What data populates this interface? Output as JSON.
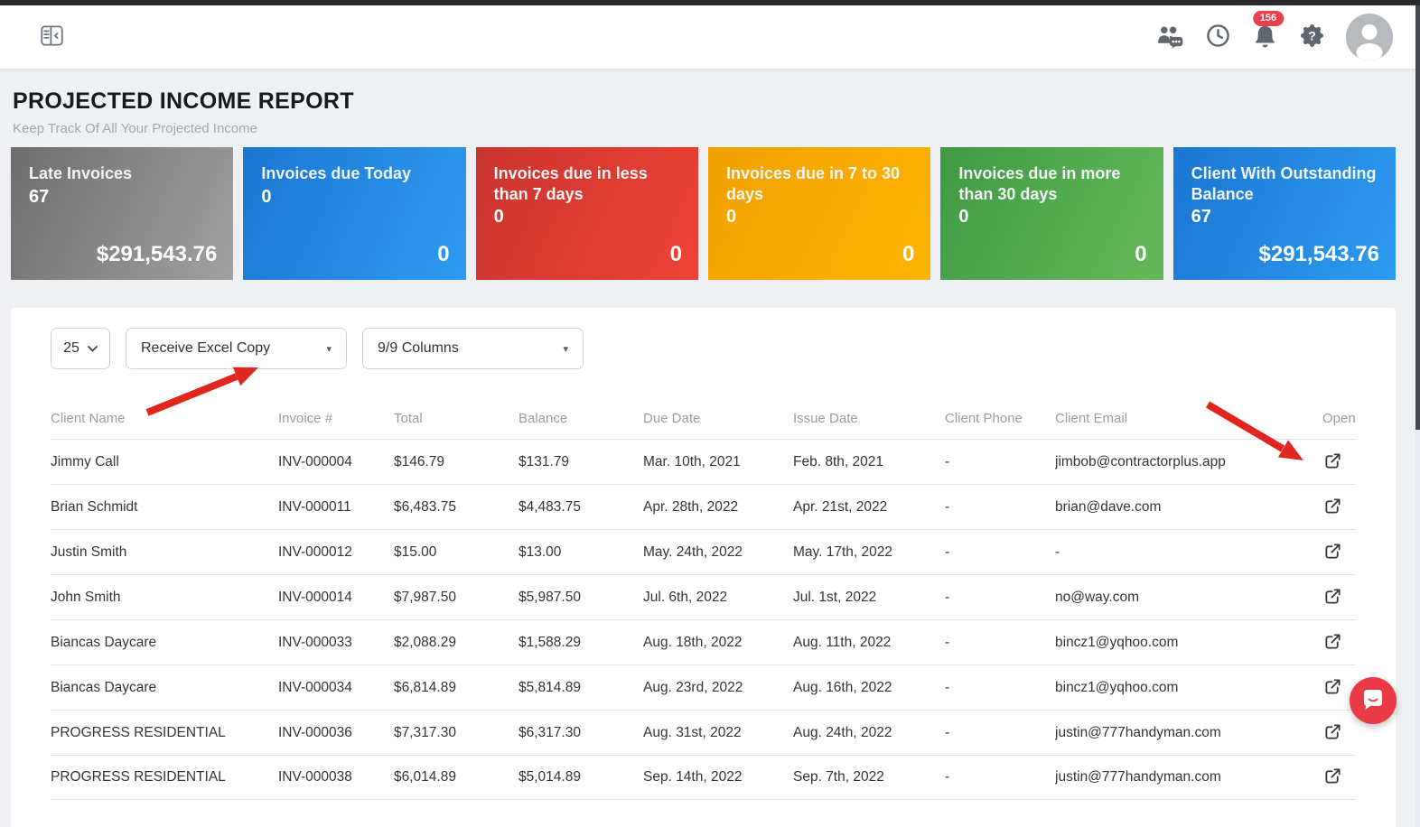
{
  "navbar": {
    "notification_count": "156"
  },
  "page": {
    "title": "PROJECTED INCOME REPORT",
    "subtitle": "Keep Track Of All Your Projected Income"
  },
  "cards": [
    {
      "label": "Late Invoices",
      "count": "67",
      "amount": "$291,543.76",
      "from": "#6d6d6d",
      "to": "#a1a1a1"
    },
    {
      "label": "Invoices due Today",
      "count": "0",
      "amount": "0",
      "from": "#1a76d2",
      "to": "#2d9bf0"
    },
    {
      "label": "Invoices due in less than 7 days",
      "count": "0",
      "amount": "0",
      "from": "#c9352e",
      "to": "#f04237"
    },
    {
      "label": "Invoices due in 7 to 30 days",
      "count": "0",
      "amount": "0",
      "from": "#efa000",
      "to": "#ffb503"
    },
    {
      "label": "Invoices due in more than 30 days",
      "count": "0",
      "amount": "0",
      "from": "#3f9a43",
      "to": "#66b95a"
    },
    {
      "label": "Client With Outstanding Balance",
      "count": "67",
      "amount": "$291,543.76",
      "from": "#1a76d2",
      "to": "#2d9bf0"
    }
  ],
  "controls": {
    "page_size": "25",
    "excel_label": "Receive Excel Copy",
    "columns_label": "9/9 Columns"
  },
  "table": {
    "columns": [
      "Client Name",
      "Invoice #",
      "Total",
      "Balance",
      "Due Date",
      "Issue Date",
      "Client Phone",
      "Client Email",
      "Open"
    ],
    "rows": [
      [
        "Jimmy Call",
        "INV-000004",
        "$146.79",
        "$131.79",
        "Mar. 10th, 2021",
        "Feb. 8th, 2021",
        "-",
        "jimbob@contractorplus.app"
      ],
      [
        "Brian Schmidt",
        "INV-000011",
        "$6,483.75",
        "$4,483.75",
        "Apr. 28th, 2022",
        "Apr. 21st, 2022",
        "-",
        "brian@dave.com"
      ],
      [
        "Justin Smith",
        "INV-000012",
        "$15.00",
        "$13.00",
        "May. 24th, 2022",
        "May. 17th, 2022",
        "-",
        "-"
      ],
      [
        "John Smith",
        "INV-000014",
        "$7,987.50",
        "$5,987.50",
        "Jul. 6th, 2022",
        "Jul. 1st, 2022",
        "-",
        "no@way.com"
      ],
      [
        "Biancas Daycare",
        "INV-000033",
        "$2,088.29",
        "$1,588.29",
        "Aug. 18th, 2022",
        "Aug. 11th, 2022",
        "-",
        "bincz1@yqhoo.com"
      ],
      [
        "Biancas Daycare",
        "INV-000034",
        "$6,814.89",
        "$5,814.89",
        "Aug. 23rd, 2022",
        "Aug. 16th, 2022",
        "-",
        "bincz1@yqhoo.com"
      ],
      [
        "PROGRESS RESIDENTIAL",
        "INV-000036",
        "$7,317.30",
        "$6,317.30",
        "Aug. 31st, 2022",
        "Aug. 24th, 2022",
        "-",
        "justin@777handyman.com"
      ],
      [
        "PROGRESS RESIDENTIAL",
        "INV-000038",
        "$6,014.89",
        "$5,014.89",
        "Sep. 14th, 2022",
        "Sep. 7th, 2022",
        "-",
        "justin@777handyman.com"
      ]
    ]
  },
  "colors": {
    "annotation_arrow": "#e0261f",
    "notification_badge": "#e8404d",
    "chat_fab": "#e93a46"
  }
}
